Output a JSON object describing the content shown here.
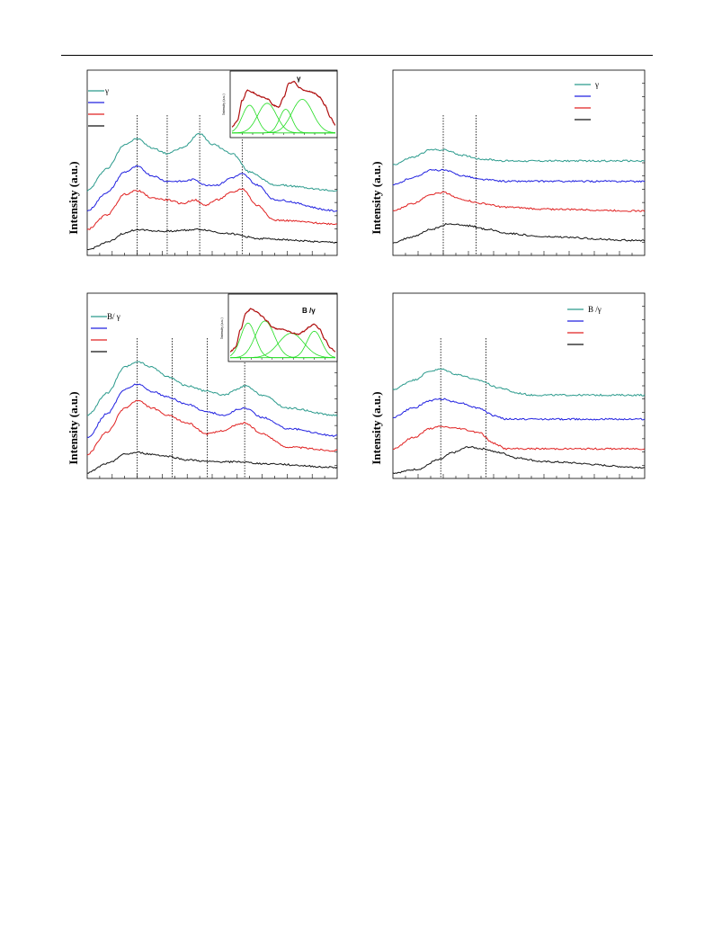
{
  "page": {
    "background": "#ffffff"
  },
  "colors": {
    "teal": "#2a9a8c",
    "blue": "#2020e0",
    "red": "#e02020",
    "black": "#111111",
    "fit_total": "#b01010",
    "fit_component": "#22dd22"
  },
  "panels": [
    {
      "ylabel": "Intensity (a.u.)",
      "legend": [
        "γ",
        "",
        "",
        ""
      ],
      "inset": {
        "title": "γ",
        "ylabel": "Intensity (a.u.)"
      }
    },
    {
      "ylabel": "Intensity (a.u.)",
      "legend": [
        "γ",
        "",
        "",
        ""
      ],
      "inset": null
    },
    {
      "ylabel": "Intensity (a.u.)",
      "legend": [
        "B/ γ",
        "",
        "",
        ""
      ],
      "inset": {
        "title": "B /γ",
        "ylabel": "Intensity (a.u.)"
      }
    },
    {
      "ylabel": "Intensity (a.u.)",
      "legend": [
        "B /γ",
        "",
        "",
        ""
      ],
      "inset": null
    }
  ],
  "chart_data": [
    {
      "type": "line",
      "xlim": [
        0,
        100
      ],
      "ylim": [
        0,
        100
      ],
      "dashed_x": [
        20,
        32,
        45,
        62
      ],
      "series": [
        {
          "color": "teal",
          "anchors": [
            [
              0,
              35
            ],
            [
              8,
              47
            ],
            [
              15,
              60
            ],
            [
              20,
              63
            ],
            [
              26,
              58
            ],
            [
              32,
              55
            ],
            [
              38,
              58
            ],
            [
              45,
              66
            ],
            [
              50,
              60
            ],
            [
              58,
              55
            ],
            [
              65,
              45
            ],
            [
              75,
              38
            ],
            [
              100,
              35
            ]
          ]
        },
        {
          "color": "blue",
          "anchors": [
            [
              0,
              24
            ],
            [
              8,
              34
            ],
            [
              15,
              45
            ],
            [
              20,
              48
            ],
            [
              26,
              43
            ],
            [
              32,
              40
            ],
            [
              38,
              40
            ],
            [
              43,
              41
            ],
            [
              47,
              38
            ],
            [
              52,
              38
            ],
            [
              58,
              42
            ],
            [
              62,
              44
            ],
            [
              68,
              38
            ],
            [
              75,
              30
            ],
            [
              100,
              24
            ]
          ]
        },
        {
          "color": "red",
          "anchors": [
            [
              0,
              14
            ],
            [
              8,
              22
            ],
            [
              15,
              33
            ],
            [
              20,
              35
            ],
            [
              26,
              31
            ],
            [
              32,
              30
            ],
            [
              38,
              28
            ],
            [
              43,
              30
            ],
            [
              47,
              27
            ],
            [
              52,
              30
            ],
            [
              58,
              34
            ],
            [
              62,
              36
            ],
            [
              68,
              27
            ],
            [
              75,
              19
            ],
            [
              100,
              17
            ]
          ]
        },
        {
          "color": "black",
          "anchors": [
            [
              0,
              3
            ],
            [
              8,
              7
            ],
            [
              15,
              12
            ],
            [
              20,
              14
            ],
            [
              30,
              13
            ],
            [
              45,
              14
            ],
            [
              55,
              12
            ],
            [
              70,
              9
            ],
            [
              100,
              7
            ]
          ]
        }
      ],
      "inset": {
        "total": [
          [
            0,
            8
          ],
          [
            5,
            14
          ],
          [
            10,
            35
          ],
          [
            15,
            45
          ],
          [
            20,
            43
          ],
          [
            25,
            40
          ],
          [
            30,
            38
          ],
          [
            35,
            36
          ],
          [
            40,
            30
          ],
          [
            45,
            28
          ],
          [
            50,
            38
          ],
          [
            55,
            52
          ],
          [
            60,
            54
          ],
          [
            65,
            48
          ],
          [
            70,
            45
          ],
          [
            75,
            44
          ],
          [
            80,
            42
          ],
          [
            85,
            38
          ],
          [
            90,
            30
          ],
          [
            95,
            18
          ],
          [
            100,
            10
          ]
        ],
        "components": [
          {
            "center": 17,
            "width": 7,
            "height": 28
          },
          {
            "center": 34,
            "width": 9,
            "height": 30
          },
          {
            "center": 52,
            "width": 6,
            "height": 24
          },
          {
            "center": 68,
            "width": 10,
            "height": 34
          }
        ]
      }
    },
    {
      "type": "line",
      "xlim": [
        0,
        100
      ],
      "ylim": [
        0,
        100
      ],
      "dashed_x": [
        20,
        33
      ],
      "series": [
        {
          "color": "teal",
          "anchors": [
            [
              0,
              49
            ],
            [
              8,
              53
            ],
            [
              15,
              57
            ],
            [
              20,
              57
            ],
            [
              28,
              54
            ],
            [
              35,
              52
            ],
            [
              45,
              51
            ],
            [
              60,
              51
            ],
            [
              100,
              51
            ]
          ]
        },
        {
          "color": "blue",
          "anchors": [
            [
              0,
              38
            ],
            [
              8,
              42
            ],
            [
              15,
              46
            ],
            [
              20,
              46
            ],
            [
              28,
              43
            ],
            [
              35,
              41
            ],
            [
              45,
              40
            ],
            [
              60,
              40
            ],
            [
              100,
              40
            ]
          ]
        },
        {
          "color": "red",
          "anchors": [
            [
              0,
              24
            ],
            [
              8,
              28
            ],
            [
              15,
              33
            ],
            [
              20,
              34
            ],
            [
              28,
              30
            ],
            [
              35,
              28
            ],
            [
              45,
              26
            ],
            [
              60,
              25
            ],
            [
              100,
              24
            ]
          ]
        },
        {
          "color": "black",
          "anchors": [
            [
              0,
              7
            ],
            [
              8,
              10
            ],
            [
              15,
              14
            ],
            [
              22,
              17
            ],
            [
              30,
              16
            ],
            [
              38,
              14
            ],
            [
              45,
              12
            ],
            [
              60,
              10
            ],
            [
              100,
              8
            ]
          ]
        }
      ]
    },
    {
      "type": "line",
      "xlim": [
        0,
        100
      ],
      "ylim": [
        0,
        100
      ],
      "dashed_x": [
        20,
        34,
        48,
        63
      ],
      "series": [
        {
          "color": "teal",
          "anchors": [
            [
              0,
              34
            ],
            [
              8,
              46
            ],
            [
              15,
              60
            ],
            [
              20,
              63
            ],
            [
              26,
              60
            ],
            [
              32,
              55
            ],
            [
              40,
              50
            ],
            [
              48,
              47
            ],
            [
              55,
              45
            ],
            [
              60,
              48
            ],
            [
              63,
              50
            ],
            [
              70,
              45
            ],
            [
              80,
              38
            ],
            [
              100,
              34
            ]
          ]
        },
        {
          "color": "blue",
          "anchors": [
            [
              0,
              22
            ],
            [
              8,
              35
            ],
            [
              15,
              48
            ],
            [
              20,
              51
            ],
            [
              26,
              47
            ],
            [
              32,
              44
            ],
            [
              40,
              40
            ],
            [
              48,
              36
            ],
            [
              55,
              34
            ],
            [
              60,
              37
            ],
            [
              63,
              38
            ],
            [
              70,
              33
            ],
            [
              80,
              27
            ],
            [
              100,
              23
            ]
          ]
        },
        {
          "color": "red",
          "anchors": [
            [
              0,
              13
            ],
            [
              8,
              25
            ],
            [
              15,
              38
            ],
            [
              20,
              42
            ],
            [
              26,
              38
            ],
            [
              32,
              34
            ],
            [
              40,
              30
            ],
            [
              48,
              24
            ],
            [
              55,
              26
            ],
            [
              60,
              29
            ],
            [
              63,
              30
            ],
            [
              70,
              24
            ],
            [
              80,
              17
            ],
            [
              100,
              15
            ]
          ]
        },
        {
          "color": "black",
          "anchors": [
            [
              0,
              3
            ],
            [
              8,
              8
            ],
            [
              15,
              13
            ],
            [
              20,
              14
            ],
            [
              26,
              13
            ],
            [
              32,
              12
            ],
            [
              40,
              10
            ],
            [
              50,
              9
            ],
            [
              60,
              9
            ],
            [
              70,
              8
            ],
            [
              100,
              6
            ]
          ]
        }
      ],
      "inset": {
        "total": [
          [
            0,
            8
          ],
          [
            5,
            12
          ],
          [
            10,
            30
          ],
          [
            15,
            46
          ],
          [
            20,
            50
          ],
          [
            25,
            47
          ],
          [
            30,
            43
          ],
          [
            35,
            38
          ],
          [
            40,
            32
          ],
          [
            45,
            30
          ],
          [
            50,
            30
          ],
          [
            55,
            28
          ],
          [
            60,
            26
          ],
          [
            65,
            25
          ],
          [
            70,
            28
          ],
          [
            75,
            32
          ],
          [
            80,
            35
          ],
          [
            85,
            30
          ],
          [
            90,
            20
          ],
          [
            95,
            12
          ],
          [
            100,
            8
          ]
        ],
        "components": [
          {
            "center": 17,
            "width": 7,
            "height": 34
          },
          {
            "center": 33,
            "width": 9,
            "height": 36
          },
          {
            "center": 58,
            "width": 12,
            "height": 24
          },
          {
            "center": 80,
            "width": 7,
            "height": 26
          }
        ]
      }
    },
    {
      "type": "line",
      "xlim": [
        0,
        100
      ],
      "ylim": [
        0,
        100
      ],
      "dashed_x": [
        19,
        37
      ],
      "series": [
        {
          "color": "teal",
          "anchors": [
            [
              0,
              48
            ],
            [
              8,
              53
            ],
            [
              15,
              58
            ],
            [
              19,
              59
            ],
            [
              26,
              56
            ],
            [
              34,
              53
            ],
            [
              42,
              49
            ],
            [
              50,
              46
            ],
            [
              55,
              45
            ],
            [
              100,
              45
            ]
          ]
        },
        {
          "color": "blue",
          "anchors": [
            [
              0,
              33
            ],
            [
              8,
              38
            ],
            [
              15,
              42
            ],
            [
              19,
              43
            ],
            [
              26,
              41
            ],
            [
              34,
              38
            ],
            [
              40,
              34
            ],
            [
              45,
              32
            ],
            [
              50,
              32
            ],
            [
              100,
              32
            ]
          ]
        },
        {
          "color": "red",
          "anchors": [
            [
              0,
              16
            ],
            [
              8,
              22
            ],
            [
              15,
              27
            ],
            [
              19,
              28
            ],
            [
              26,
              27
            ],
            [
              34,
              25
            ],
            [
              40,
              19
            ],
            [
              45,
              16
            ],
            [
              50,
              16
            ],
            [
              100,
              16
            ]
          ]
        },
        {
          "color": "black",
          "anchors": [
            [
              0,
              3
            ],
            [
              10,
              5
            ],
            [
              18,
              10
            ],
            [
              24,
              14
            ],
            [
              30,
              17
            ],
            [
              36,
              16
            ],
            [
              42,
              14
            ],
            [
              50,
              11
            ],
            [
              60,
              9
            ],
            [
              100,
              6
            ]
          ]
        }
      ]
    }
  ]
}
